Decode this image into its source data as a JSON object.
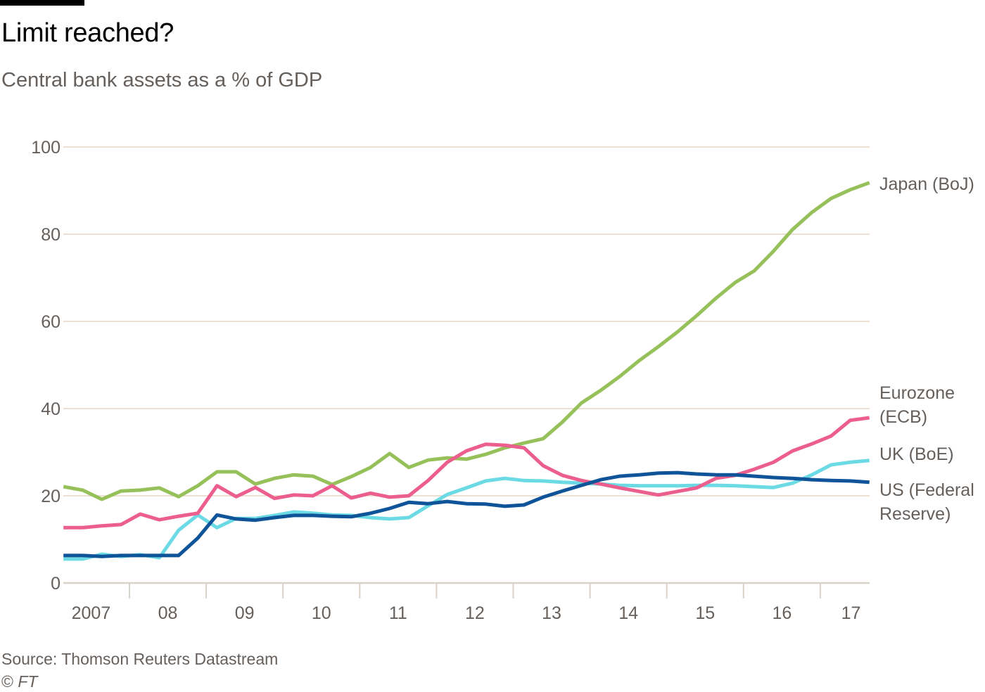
{
  "header": {
    "title": "Limit reached?",
    "subtitle": "Central bank assets as a % of GDP"
  },
  "footer": {
    "source": "Source: Thomson Reuters Datastream",
    "copyright_symbol": "©",
    "copyright_owner": "FT"
  },
  "chart_data": {
    "type": "line",
    "title": "Limit reached?",
    "subtitle": "Central bank assets as a % of GDP",
    "xlabel": "",
    "ylabel": "% of GDP",
    "ylim": [
      0,
      100
    ],
    "yticks": [
      0,
      20,
      40,
      60,
      80,
      100
    ],
    "xlim": [
      2007.0,
      2017.8
    ],
    "xticks": [
      {
        "label": "2007",
        "center": 2007.5
      },
      {
        "label": "08",
        "center": 2008.5
      },
      {
        "label": "09",
        "center": 2009.5
      },
      {
        "label": "10",
        "center": 2010.5
      },
      {
        "label": "11",
        "center": 2011.5
      },
      {
        "label": "12",
        "center": 2012.5
      },
      {
        "label": "13",
        "center": 2013.5
      },
      {
        "label": "14",
        "center": 2014.5
      },
      {
        "label": "15",
        "center": 2015.5
      },
      {
        "label": "16",
        "center": 2016.5
      },
      {
        "label": "17",
        "center": 2017.4
      }
    ],
    "xtick_marks": [
      2008,
      2009,
      2010,
      2011,
      2012,
      2013,
      2014,
      2015,
      2016,
      2017
    ],
    "grid": "horizontal",
    "legend": "direct-labels-right",
    "x_start": 2007.14,
    "x_step": 0.25,
    "series": [
      {
        "name": "Japan (BoJ)",
        "label_lines": [
          "Japan (BoJ)"
        ],
        "color": "#96c15a",
        "values": [
          22.1,
          21.3,
          19.2,
          21.1,
          21.3,
          21.8,
          19.8,
          22.3,
          25.5,
          25.5,
          22.7,
          24.0,
          24.8,
          24.5,
          22.6,
          24.4,
          26.5,
          29.7,
          26.5,
          28.2,
          28.7,
          28.4,
          29.5,
          31.0,
          32.1,
          33.1,
          36.9,
          41.3,
          44.2,
          47.4,
          51.0,
          54.2,
          57.6,
          61.3,
          65.3,
          68.9,
          71.6,
          76.1,
          81.1,
          85.0,
          88.2,
          90.2,
          91.8
        ]
      },
      {
        "name": "Eurozone (ECB)",
        "label_lines": [
          "Eurozone",
          "(ECB)"
        ],
        "color": "#eb5e8d",
        "values": [
          12.7,
          12.7,
          13.1,
          13.4,
          15.8,
          14.5,
          15.3,
          16.0,
          22.3,
          19.8,
          21.9,
          19.4,
          20.2,
          20.0,
          22.3,
          19.5,
          20.6,
          19.7,
          20.0,
          23.5,
          27.7,
          30.3,
          31.8,
          31.6,
          31.0,
          26.9,
          24.7,
          23.5,
          22.7,
          21.8,
          21.0,
          20.2,
          21.0,
          21.8,
          24.0,
          24.7,
          26.1,
          27.7,
          30.3,
          31.9,
          33.7,
          37.3,
          37.9
        ]
      },
      {
        "name": "UK (BoE)",
        "label_lines": [
          "UK (BoE)"
        ],
        "color": "#6cdae4",
        "values": [
          5.5,
          5.5,
          6.6,
          6.1,
          6.5,
          5.8,
          12.1,
          15.6,
          12.7,
          14.8,
          14.8,
          15.5,
          16.3,
          16.0,
          15.6,
          15.5,
          15.0,
          14.7,
          15.0,
          17.7,
          20.3,
          21.8,
          23.4,
          24.0,
          23.5,
          23.4,
          23.1,
          22.9,
          22.7,
          22.4,
          22.3,
          22.3,
          22.3,
          22.4,
          22.4,
          22.3,
          22.1,
          21.9,
          22.9,
          24.8,
          27.1,
          27.7,
          28.1
        ]
      },
      {
        "name": "US (Federal Reserve)",
        "label_lines": [
          "US (Federal",
          "Reserve)"
        ],
        "color": "#0f5499",
        "values": [
          6.3,
          6.3,
          6.1,
          6.3,
          6.3,
          6.3,
          6.3,
          10.3,
          15.6,
          14.7,
          14.4,
          15.0,
          15.5,
          15.5,
          15.3,
          15.2,
          16.0,
          17.1,
          18.5,
          18.2,
          18.7,
          18.2,
          18.1,
          17.6,
          17.9,
          19.7,
          21.1,
          22.4,
          23.7,
          24.5,
          24.8,
          25.2,
          25.3,
          25.0,
          24.8,
          24.8,
          24.5,
          24.2,
          24.0,
          23.7,
          23.5,
          23.4,
          23.1
        ]
      }
    ]
  }
}
